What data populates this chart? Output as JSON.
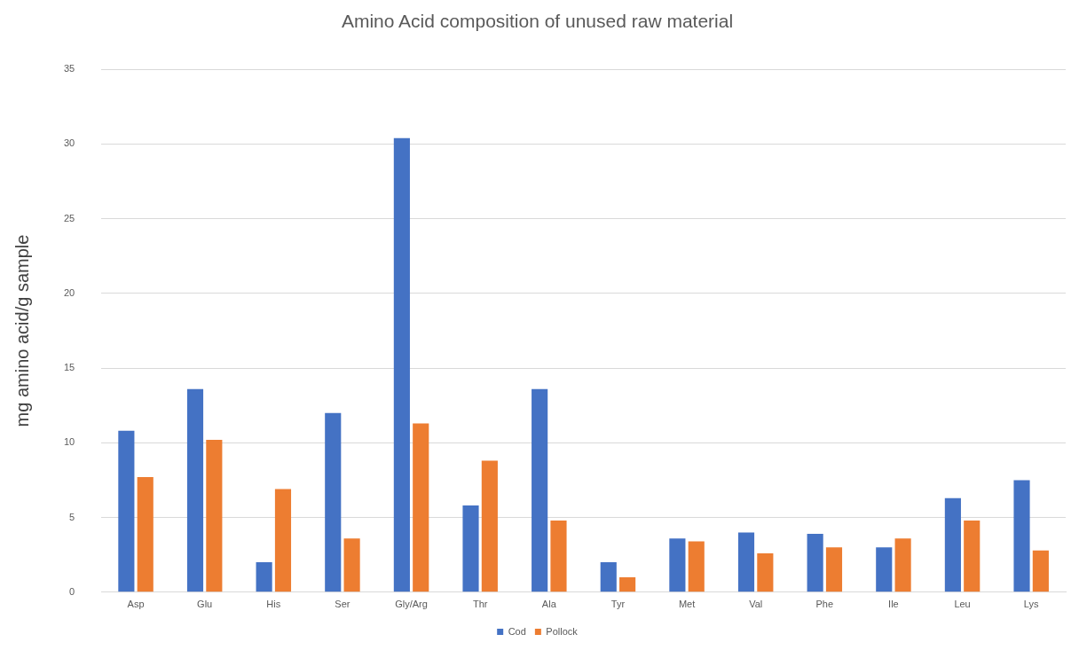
{
  "chart_data": {
    "type": "bar",
    "title": "Amino Acid composition of unused raw material",
    "ylabel": "mg amino acid/g sample",
    "categories": [
      "Asp",
      "Glu",
      "His",
      "Ser",
      "Gly/Arg",
      "Thr",
      "Ala",
      "Tyr",
      "Met",
      "Val",
      "Phe",
      "Ile",
      "Leu",
      "Lys"
    ],
    "series": [
      {
        "name": "Cod",
        "color": "#4472c4",
        "values": [
          10.8,
          13.6,
          2.0,
          12.0,
          30.4,
          5.8,
          13.6,
          2.0,
          3.6,
          4.0,
          3.9,
          3.0,
          6.3,
          7.5
        ]
      },
      {
        "name": "Pollock",
        "color": "#ed7d31",
        "values": [
          7.7,
          10.2,
          6.9,
          3.6,
          11.3,
          8.8,
          4.8,
          1.0,
          3.4,
          2.6,
          3.0,
          3.6,
          4.8,
          2.8
        ]
      }
    ],
    "ylim": [
      0,
      35
    ],
    "yticks": [
      0,
      5,
      10,
      15,
      20,
      25,
      30,
      35
    ],
    "grid": "y",
    "legend": "bottom"
  }
}
